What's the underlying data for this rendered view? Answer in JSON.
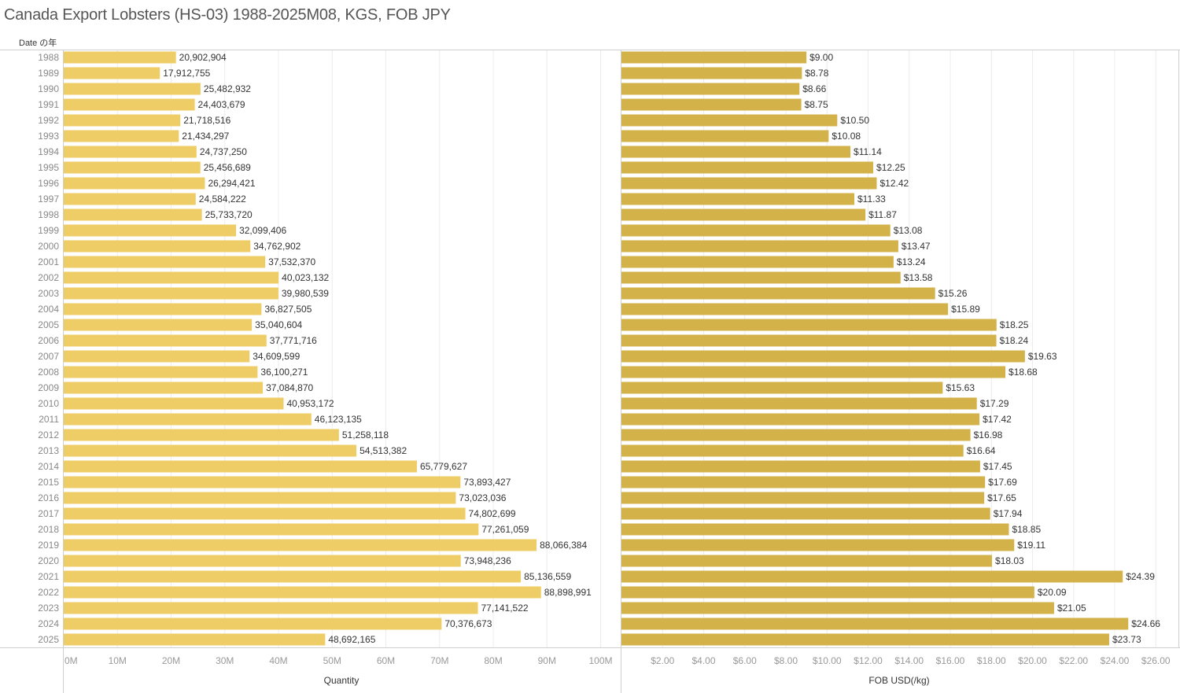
{
  "page": {
    "title": "Canada Export Lobsters (HS-03) 1988-2025M08, KGS, FOB JPY"
  },
  "chart_data": [
    {
      "type": "bar",
      "orientation": "horizontal",
      "title": "Canada Export Lobsters (HS-03) 1988-2025M08, KGS, FOB JPY",
      "row_header": "Date の年",
      "xlabel": "Quantity",
      "ylabel": "Date の年",
      "xlim": [
        0,
        103000000
      ],
      "xticks": [
        0,
        10000000,
        20000000,
        30000000,
        40000000,
        50000000,
        60000000,
        70000000,
        80000000,
        90000000,
        100000000
      ],
      "xtick_labels": [
        "0M",
        "10M",
        "20M",
        "30M",
        "40M",
        "50M",
        "60M",
        "70M",
        "80M",
        "90M",
        "100M"
      ],
      "grid": true,
      "color": "#efcd66",
      "categories": [
        "1988",
        "1989",
        "1990",
        "1991",
        "1992",
        "1993",
        "1994",
        "1995",
        "1996",
        "1997",
        "1998",
        "1999",
        "2000",
        "2001",
        "2002",
        "2003",
        "2004",
        "2005",
        "2006",
        "2007",
        "2008",
        "2009",
        "2010",
        "2011",
        "2012",
        "2013",
        "2014",
        "2015",
        "2016",
        "2017",
        "2018",
        "2019",
        "2020",
        "2021",
        "2022",
        "2023",
        "2024",
        "2025"
      ],
      "values": [
        20902904,
        17912755,
        25482932,
        24403679,
        21718516,
        21434297,
        24737250,
        25456689,
        26294421,
        24584222,
        25733720,
        32099406,
        34762902,
        37532370,
        40023132,
        39980539,
        36827505,
        35040604,
        37771716,
        34609599,
        36100271,
        37084870,
        40953172,
        46123135,
        51258118,
        54513382,
        65779627,
        73893427,
        73023036,
        74802699,
        77261059,
        88066384,
        73948236,
        85136559,
        88898991,
        77141522,
        70376673,
        48692165
      ],
      "value_labels": [
        "20,902,904",
        "17,912,755",
        "25,482,932",
        "24,403,679",
        "21,718,516",
        "21,434,297",
        "24,737,250",
        "25,456,689",
        "26,294,421",
        "24,584,222",
        "25,733,720",
        "32,099,406",
        "34,762,902",
        "37,532,370",
        "40,023,132",
        "39,980,539",
        "36,827,505",
        "35,040,604",
        "37,771,716",
        "34,609,599",
        "36,100,271",
        "37,084,870",
        "40,953,172",
        "46,123,135",
        "51,258,118",
        "54,513,382",
        "65,779,627",
        "73,893,427",
        "73,023,036",
        "74,802,699",
        "77,261,059",
        "88,066,384",
        "73,948,236",
        "85,136,559",
        "88,898,991",
        "77,141,522",
        "70,376,673",
        "48,692,165"
      ]
    },
    {
      "type": "bar",
      "orientation": "horizontal",
      "xlabel": "FOB USD(/kg)",
      "xlim": [
        0,
        27.1
      ],
      "xticks": [
        2,
        4,
        6,
        8,
        10,
        12,
        14,
        16,
        18,
        20,
        22,
        24,
        26
      ],
      "xtick_labels": [
        "$2.00",
        "$4.00",
        "$6.00",
        "$8.00",
        "$10.00",
        "$12.00",
        "$14.00",
        "$16.00",
        "$18.00",
        "$20.00",
        "$22.00",
        "$24.00",
        "$26.00"
      ],
      "grid": true,
      "color": "#d4b24a",
      "categories": [
        "1988",
        "1989",
        "1990",
        "1991",
        "1992",
        "1993",
        "1994",
        "1995",
        "1996",
        "1997",
        "1998",
        "1999",
        "2000",
        "2001",
        "2002",
        "2003",
        "2004",
        "2005",
        "2006",
        "2007",
        "2008",
        "2009",
        "2010",
        "2011",
        "2012",
        "2013",
        "2014",
        "2015",
        "2016",
        "2017",
        "2018",
        "2019",
        "2020",
        "2021",
        "2022",
        "2023",
        "2024",
        "2025"
      ],
      "values": [
        9.0,
        8.78,
        8.66,
        8.75,
        10.5,
        10.08,
        11.14,
        12.25,
        12.42,
        11.33,
        11.87,
        13.08,
        13.47,
        13.24,
        13.58,
        15.26,
        15.89,
        18.25,
        18.24,
        19.63,
        18.68,
        15.63,
        17.29,
        17.42,
        16.98,
        16.64,
        17.45,
        17.69,
        17.65,
        17.94,
        18.85,
        19.11,
        18.03,
        24.39,
        20.09,
        21.05,
        24.66,
        23.73
      ],
      "value_labels": [
        "$9.00",
        "$8.78",
        "$8.66",
        "$8.75",
        "$10.50",
        "$10.08",
        "$11.14",
        "$12.25",
        "$12.42",
        "$11.33",
        "$11.87",
        "$13.08",
        "$13.47",
        "$13.24",
        "$13.58",
        "$15.26",
        "$15.89",
        "$18.25",
        "$18.24",
        "$19.63",
        "$18.68",
        "$15.63",
        "$17.29",
        "$17.42",
        "$16.98",
        "$16.64",
        "$17.45",
        "$17.69",
        "$17.65",
        "$17.94",
        "$18.85",
        "$19.11",
        "$18.03",
        "$24.39",
        "$20.09",
        "$21.05",
        "$24.66",
        "$23.73"
      ]
    }
  ]
}
